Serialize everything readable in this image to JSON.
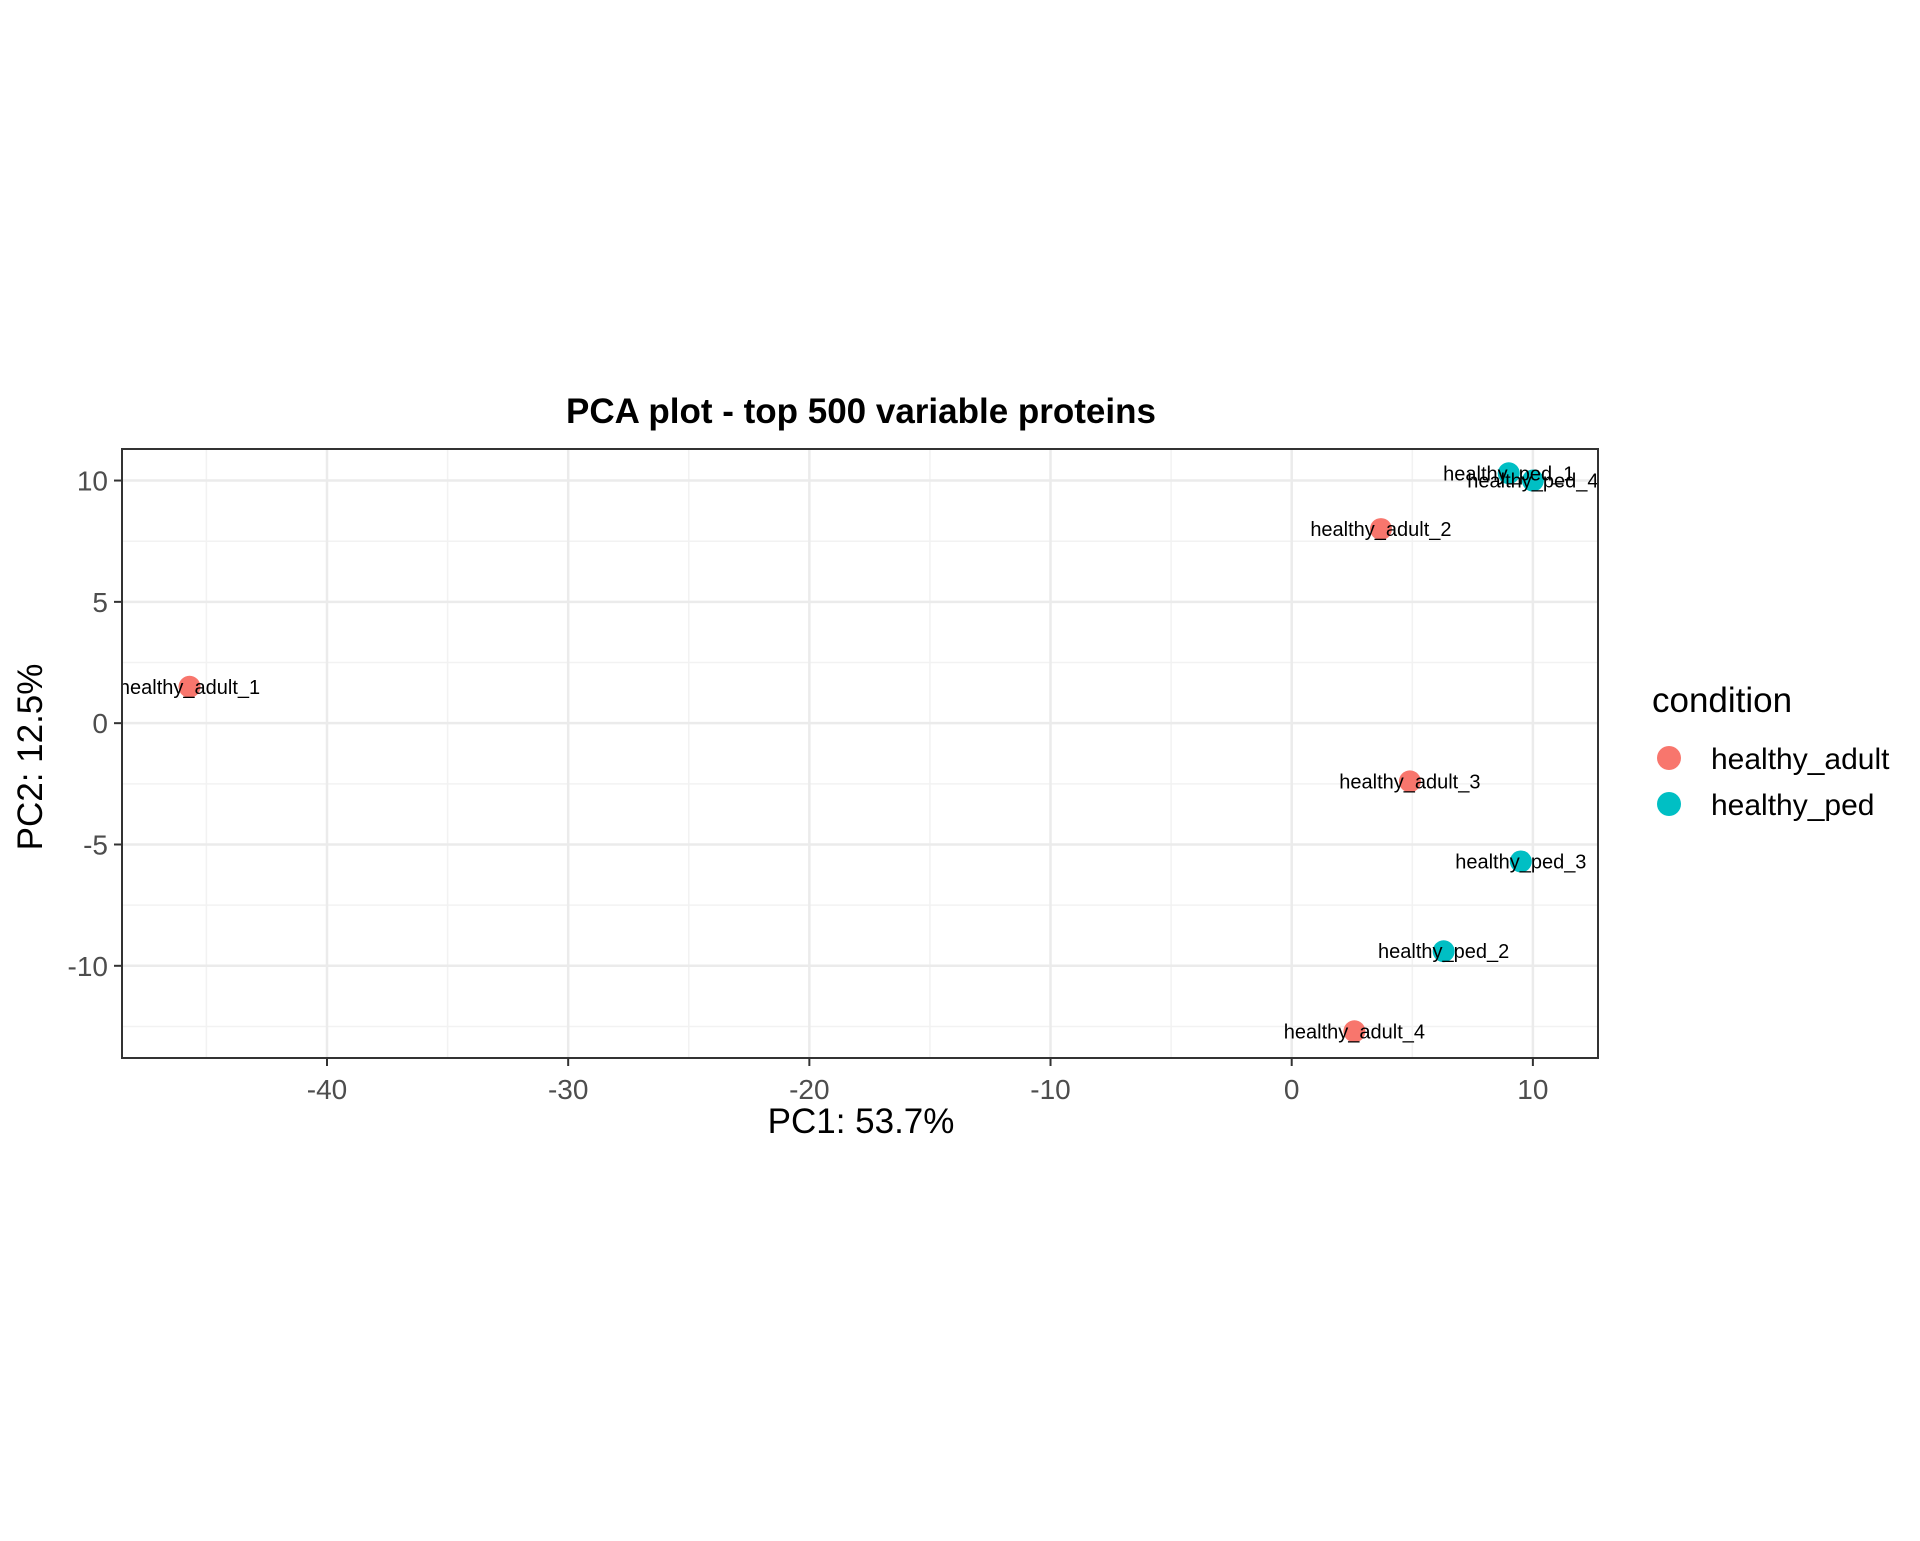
{
  "chart_data": {
    "type": "scatter",
    "title": "PCA plot - top 500 variable proteins",
    "xlabel": "PC1: 53.7%",
    "ylabel": "PC2: 12.5%",
    "xlim": [
      -48.5,
      12.7
    ],
    "ylim": [
      -13.8,
      11.3
    ],
    "x_ticks": [
      -40,
      -30,
      -20,
      -10,
      0,
      10
    ],
    "y_ticks": [
      -10,
      -5,
      0,
      5,
      10
    ],
    "grid": true,
    "legend": {
      "title": "condition",
      "position": "right",
      "entries": [
        {
          "name": "healthy_adult",
          "color": "#F8766D"
        },
        {
          "name": "healthy_ped",
          "color": "#00BFC4"
        }
      ]
    },
    "series": [
      {
        "name": "healthy_adult",
        "color": "#F8766D",
        "points": [
          {
            "label": "healthy_adult_1",
            "x": -45.7,
            "y": 1.5
          },
          {
            "label": "healthy_adult_2",
            "x": 3.7,
            "y": 8.0
          },
          {
            "label": "healthy_adult_3",
            "x": 4.9,
            "y": -2.4
          },
          {
            "label": "healthy_adult_4",
            "x": 2.6,
            "y": -12.7
          }
        ]
      },
      {
        "name": "healthy_ped",
        "color": "#00BFC4",
        "points": [
          {
            "label": "healthy_ped_1",
            "x": 9.0,
            "y": 10.3
          },
          {
            "label": "healthy_ped_4",
            "x": 10.0,
            "y": 10.0
          },
          {
            "label": "healthy_ped_3",
            "x": 9.5,
            "y": -5.7
          },
          {
            "label": "healthy_ped_2",
            "x": 6.3,
            "y": -9.4
          }
        ]
      }
    ]
  }
}
